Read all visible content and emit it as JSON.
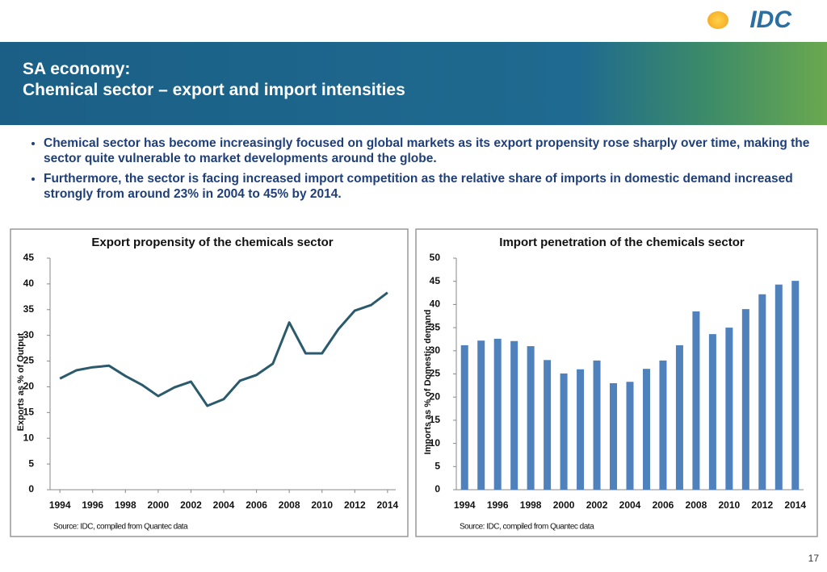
{
  "logo": "IDC",
  "header": {
    "title": [
      "SA economy:",
      "Chemical sector – export and import intensities"
    ]
  },
  "bullets": [
    "Chemical sector has become increasingly focused on global markets as its export propensity rose sharply over time, making the sector quite vulnerable to market developments around the globe.",
    "Furthermore, the sector is facing increased import competition as the relative share of imports in domestic demand increased strongly from around 23% in 2004 to 45% by 2014."
  ],
  "page_number": "17",
  "chart_data": [
    {
      "type": "line",
      "title": "Export propensity of the chemicals sector",
      "y_label": "Exports as % of Output",
      "source": "Source: IDC,  compiled from Quantec data",
      "x": [
        1994,
        1995,
        1996,
        1997,
        1998,
        1999,
        2000,
        2001,
        2002,
        2003,
        2004,
        2005,
        2006,
        2007,
        2008,
        2009,
        2010,
        2011,
        2012,
        2013,
        2014
      ],
      "values": [
        21.6,
        23.2,
        23.8,
        24.1,
        22.1,
        20.4,
        18.2,
        19.9,
        21.0,
        16.3,
        17.6,
        21.2,
        22.3,
        24.5,
        32.5,
        26.5,
        26.5,
        31.2,
        34.8,
        35.9,
        38.3
      ],
      "color": "#2a5a6b",
      "xlim": [
        1993.4,
        2014.5
      ],
      "xticks": [
        1994,
        1996,
        1998,
        2000,
        2002,
        2004,
        2006,
        2008,
        2010,
        2012,
        2014
      ],
      "ylim": [
        0,
        45
      ],
      "yticks": [
        0,
        5,
        10,
        15,
        20,
        25,
        30,
        35,
        40,
        45
      ]
    },
    {
      "type": "bar",
      "title": "Import penetration of the chemicals sector",
      "y_label": "Imports as % of Domestic demand",
      "source": "Source: IDC,  compiled from Quantec data",
      "categories": [
        "1994",
        null,
        "1996",
        null,
        "1998",
        null,
        "2000",
        null,
        "2002",
        null,
        "2004",
        null,
        "2006",
        null,
        "2008",
        null,
        "2010",
        null,
        "2012",
        null,
        "2014"
      ],
      "values": [
        31.2,
        32.2,
        32.6,
        32.1,
        31.0,
        28.0,
        25.1,
        26.0,
        27.9,
        23.0,
        23.3,
        26.1,
        27.9,
        31.2,
        38.5,
        33.6,
        35.0,
        39.0,
        42.2,
        44.3,
        45.1
      ],
      "color": "#4f81bd",
      "ylim": [
        0,
        50
      ],
      "yticks": [
        0,
        5,
        10,
        15,
        20,
        25,
        30,
        35,
        40,
        45,
        50
      ]
    }
  ]
}
